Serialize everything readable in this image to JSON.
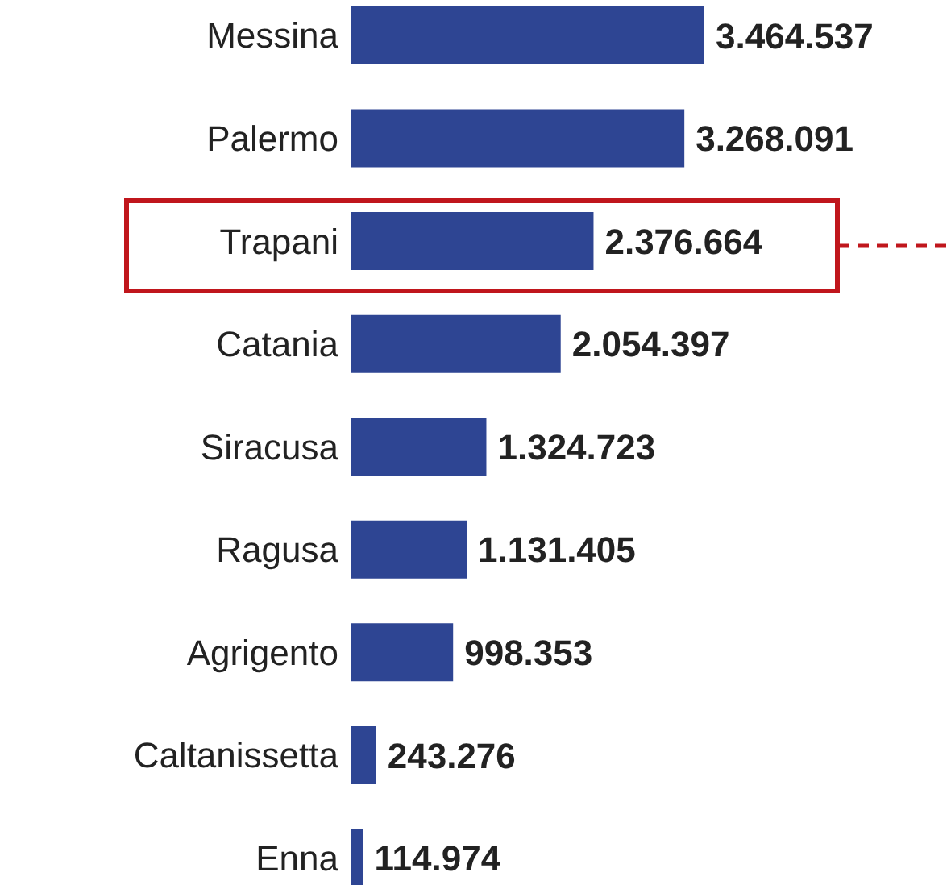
{
  "chart_data": {
    "type": "bar",
    "orientation": "horizontal",
    "categories": [
      "Messina",
      "Palermo",
      "Trapani",
      "Catania",
      "Siracusa",
      "Ragusa",
      "Agrigento",
      "Caltanissetta",
      "Enna"
    ],
    "values": [
      3464537,
      3268091,
      2376664,
      2054397,
      1324723,
      1131405,
      998353,
      243276,
      114974
    ],
    "value_labels": [
      "3.464.537",
      "3.268.091",
      "2.376.664",
      "2.054.397",
      "1.324.723",
      "1.131.405",
      "998.353",
      "243.276",
      "114.974"
    ],
    "color": "#2e4593"
  }
}
